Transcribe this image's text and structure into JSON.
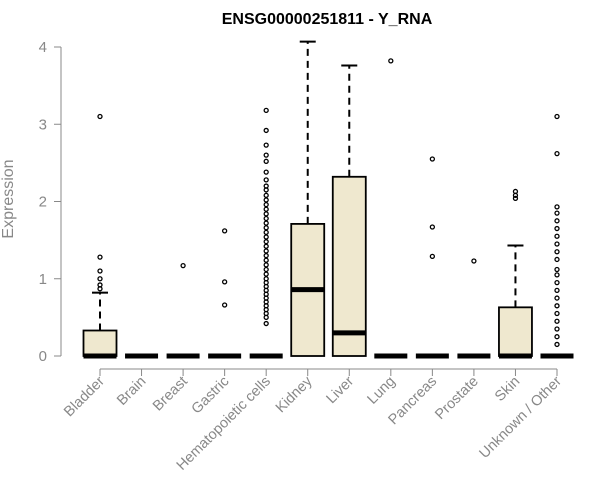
{
  "chart_data": {
    "type": "boxplot",
    "title": "ENSG00000251811 - Y_RNA",
    "xlabel": "",
    "ylabel": "Expression",
    "ylim": [
      0,
      4.1
    ],
    "yticks": [
      0,
      1,
      2,
      3,
      4
    ],
    "box_color": "#efe8cf",
    "categories": [
      "Bladder",
      "Brain",
      "Breast",
      "Gastric",
      "Hematopoietic cells",
      "Kidney",
      "Liver",
      "Lung",
      "Pancreas",
      "Prostate",
      "Skin",
      "Unknown / Other"
    ],
    "boxes": [
      {
        "q1": 0,
        "median": 0,
        "q3": 0.33,
        "whisker_low": 0,
        "whisker_high": 0.82,
        "outliers": [
          3.1,
          1.28,
          1.1,
          1.0,
          0.92,
          0.87
        ]
      },
      {
        "q1": 0,
        "median": 0,
        "q3": 0,
        "whisker_low": 0,
        "whisker_high": 0,
        "outliers": []
      },
      {
        "q1": 0,
        "median": 0,
        "q3": 0,
        "whisker_low": 0,
        "whisker_high": 0,
        "outliers": [
          1.17
        ]
      },
      {
        "q1": 0,
        "median": 0,
        "q3": 0,
        "whisker_low": 0,
        "whisker_high": 0,
        "outliers": [
          1.62,
          0.96,
          0.66
        ]
      },
      {
        "q1": 0,
        "median": 0,
        "q3": 0,
        "whisker_low": 0,
        "whisker_high": 0,
        "outliers": [
          3.18,
          2.92,
          2.73,
          2.6,
          2.52,
          2.38,
          2.28,
          2.2,
          2.15,
          2.08,
          2.02,
          1.96,
          1.9,
          1.84,
          1.78,
          1.72,
          1.66,
          1.6,
          1.54,
          1.48,
          1.42,
          1.36,
          1.3,
          1.24,
          1.18,
          1.12,
          1.06,
          1.0,
          0.95,
          0.9,
          0.85,
          0.8,
          0.75,
          0.7,
          0.65,
          0.6,
          0.55,
          0.5,
          0.42
        ]
      },
      {
        "q1": 0,
        "median": 0.86,
        "q3": 1.71,
        "whisker_low": 0,
        "whisker_high": 4.07,
        "outliers": []
      },
      {
        "q1": 0,
        "median": 0.3,
        "q3": 2.32,
        "whisker_low": 0,
        "whisker_high": 3.76,
        "outliers": []
      },
      {
        "q1": 0,
        "median": 0,
        "q3": 0,
        "whisker_low": 0,
        "whisker_high": 0,
        "outliers": [
          3.82
        ]
      },
      {
        "q1": 0,
        "median": 0,
        "q3": 0,
        "whisker_low": 0,
        "whisker_high": 0,
        "outliers": [
          2.55,
          1.67,
          1.29
        ]
      },
      {
        "q1": 0,
        "median": 0,
        "q3": 0,
        "whisker_low": 0,
        "whisker_high": 0,
        "outliers": [
          1.23
        ]
      },
      {
        "q1": 0,
        "median": 0,
        "q3": 0.63,
        "whisker_low": 0,
        "whisker_high": 1.43,
        "outliers": [
          2.13,
          2.08,
          2.04
        ]
      },
      {
        "q1": 0,
        "median": 0,
        "q3": 0,
        "whisker_low": 0,
        "whisker_high": 0,
        "outliers": [
          3.1,
          2.62,
          1.93,
          1.85,
          1.75,
          1.65,
          1.55,
          1.45,
          1.35,
          1.25,
          1.12,
          1.05,
          0.95,
          0.85,
          0.75,
          0.65,
          0.55,
          0.45,
          0.35,
          0.25,
          0.15
        ]
      }
    ]
  }
}
